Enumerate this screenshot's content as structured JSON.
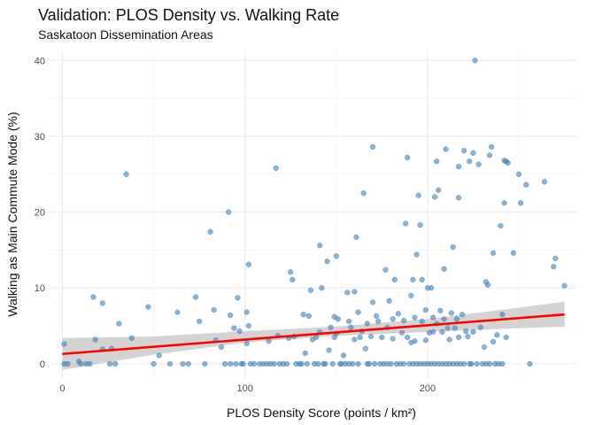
{
  "chart_data": {
    "type": "scatter",
    "title": "Validation: PLOS Density vs. Walking Rate",
    "subtitle": "Saskatoon Dissemination Areas",
    "xlabel": "PLOS Density Score (points / km²)",
    "ylabel": "Walking as Main Commute Mode (%)",
    "xlim": [
      -7,
      282
    ],
    "ylim": [
      -2,
      41.2
    ],
    "x_ticks": [
      0,
      100,
      200
    ],
    "y_ticks": [
      0,
      10,
      20,
      30,
      40
    ],
    "grid": true,
    "point_color": "#4682b4",
    "fit_color": "#ff0000",
    "band_color": "#c8c8c8",
    "fit_line": {
      "x": [
        0,
        275
      ],
      "y": [
        1.3,
        6.5
      ]
    },
    "confidence_band": {
      "x": [
        0,
        50,
        100,
        150,
        200,
        250,
        275
      ],
      "lower": [
        -0.8,
        1.2,
        2.8,
        3.7,
        4.2,
        4.7,
        4.9
      ],
      "upper": [
        3.4,
        3.6,
        4.3,
        4.9,
        5.9,
        7.4,
        8.2
      ]
    },
    "points": [
      [
        1,
        2.6
      ],
      [
        1,
        0
      ],
      [
        3,
        0
      ],
      [
        10,
        0
      ],
      [
        13,
        0
      ],
      [
        15,
        0
      ],
      [
        9,
        0.3
      ],
      [
        18,
        3.2
      ],
      [
        17,
        8.8
      ],
      [
        22,
        8.0
      ],
      [
        22,
        1.9
      ],
      [
        26,
        0
      ],
      [
        27,
        2.0
      ],
      [
        29,
        0
      ],
      [
        31,
        5.3
      ],
      [
        35,
        25.0
      ],
      [
        38,
        3.4
      ],
      [
        47,
        7.5
      ],
      [
        50,
        0
      ],
      [
        53,
        1.1
      ],
      [
        59,
        0
      ],
      [
        63,
        6.8
      ],
      [
        66,
        0
      ],
      [
        69,
        0
      ],
      [
        73,
        8.8
      ],
      [
        75,
        5.6
      ],
      [
        78,
        0
      ],
      [
        81,
        17.4
      ],
      [
        83,
        7.1
      ],
      [
        84,
        3.1
      ],
      [
        87,
        2.2
      ],
      [
        89,
        0
      ],
      [
        91,
        20.0
      ],
      [
        92,
        6.4
      ],
      [
        92,
        0
      ],
      [
        94,
        4.7
      ],
      [
        95,
        0
      ],
      [
        96,
        8.7
      ],
      [
        97,
        4.3
      ],
      [
        98,
        0
      ],
      [
        99,
        0
      ],
      [
        101,
        6.8
      ],
      [
        101,
        2.7
      ],
      [
        102,
        5.0
      ],
      [
        102,
        13.1
      ],
      [
        103,
        0
      ],
      [
        105,
        0
      ],
      [
        108,
        0
      ],
      [
        110,
        0
      ],
      [
        112,
        0
      ],
      [
        113,
        3.0
      ],
      [
        114,
        0
      ],
      [
        116,
        0
      ],
      [
        117,
        25.8
      ],
      [
        118,
        3.7
      ],
      [
        119,
        0
      ],
      [
        121,
        0
      ],
      [
        123,
        0
      ],
      [
        124,
        3.4
      ],
      [
        125,
        12.1
      ],
      [
        126,
        11.1
      ],
      [
        127,
        3.6
      ],
      [
        128,
        0
      ],
      [
        130,
        0
      ],
      [
        131,
        0
      ],
      [
        132,
        6.5
      ],
      [
        133,
        1.4
      ],
      [
        134,
        0
      ],
      [
        135,
        6.3
      ],
      [
        136,
        9.7
      ],
      [
        137,
        3.2
      ],
      [
        138,
        0
      ],
      [
        139,
        3.5
      ],
      [
        140,
        0
      ],
      [
        141,
        15.6
      ],
      [
        141,
        4.2
      ],
      [
        142,
        10.0
      ],
      [
        143,
        0
      ],
      [
        144,
        0
      ],
      [
        145,
        13.5
      ],
      [
        146,
        1.8
      ],
      [
        147,
        4.8
      ],
      [
        148,
        0
      ],
      [
        149,
        6.2
      ],
      [
        149,
        3.5
      ],
      [
        150,
        4.0
      ],
      [
        150,
        14.2
      ],
      [
        151,
        5.9
      ],
      [
        152,
        0
      ],
      [
        153,
        0
      ],
      [
        154,
        1.1
      ],
      [
        155,
        0
      ],
      [
        156,
        9.4
      ],
      [
        157,
        5.6
      ],
      [
        157,
        0
      ],
      [
        158,
        4.8
      ],
      [
        159,
        0
      ],
      [
        160,
        9.5
      ],
      [
        160,
        3.2
      ],
      [
        161,
        16.7
      ],
      [
        162,
        6.8
      ],
      [
        162,
        0
      ],
      [
        163,
        3.5
      ],
      [
        164,
        4.3
      ],
      [
        165,
        22.5
      ],
      [
        166,
        2.0
      ],
      [
        167,
        5.3
      ],
      [
        167,
        0
      ],
      [
        168,
        0
      ],
      [
        169,
        3.6
      ],
      [
        170,
        28.6
      ],
      [
        170,
        8.1
      ],
      [
        171,
        0
      ],
      [
        172,
        6.3
      ],
      [
        173,
        5.6
      ],
      [
        174,
        0
      ],
      [
        175,
        3.5
      ],
      [
        176,
        0
      ],
      [
        177,
        12.4
      ],
      [
        178,
        4.8
      ],
      [
        178,
        0
      ],
      [
        179,
        8.3
      ],
      [
        180,
        0
      ],
      [
        181,
        5.9
      ],
      [
        181,
        3.3
      ],
      [
        182,
        11.1
      ],
      [
        183,
        0
      ],
      [
        184,
        6.6
      ],
      [
        185,
        0
      ],
      [
        186,
        4.1
      ],
      [
        187,
        5.7
      ],
      [
        187,
        0
      ],
      [
        188,
        18.5
      ],
      [
        189,
        27.2
      ],
      [
        189,
        3.5
      ],
      [
        190,
        0
      ],
      [
        191,
        9.0
      ],
      [
        191,
        2.8
      ],
      [
        192,
        11.1
      ],
      [
        192,
        0
      ],
      [
        193,
        6.1
      ],
      [
        193,
        3.0
      ],
      [
        194,
        14.4
      ],
      [
        194,
        0
      ],
      [
        195,
        22.2
      ],
      [
        196,
        0
      ],
      [
        196,
        18.3
      ],
      [
        197,
        11.1
      ],
      [
        197,
        5.6
      ],
      [
        198,
        0
      ],
      [
        199,
        3.1
      ],
      [
        199,
        7.1
      ],
      [
        200,
        0
      ],
      [
        200,
        10.0
      ],
      [
        201,
        4.1
      ],
      [
        202,
        0
      ],
      [
        202,
        10.0
      ],
      [
        203,
        4.2
      ],
      [
        203,
        6.1
      ],
      [
        204,
        22.0
      ],
      [
        204,
        0
      ],
      [
        205,
        26.7
      ],
      [
        205,
        5.3
      ],
      [
        206,
        22.9
      ],
      [
        206,
        0
      ],
      [
        207,
        7.0
      ],
      [
        208,
        0
      ],
      [
        208,
        4.2
      ],
      [
        209,
        5.9
      ],
      [
        209,
        12.5
      ],
      [
        210,
        28.3
      ],
      [
        210,
        0
      ],
      [
        211,
        4.7
      ],
      [
        212,
        3.2
      ],
      [
        212,
        0
      ],
      [
        213,
        6.7
      ],
      [
        214,
        15.4
      ],
      [
        214,
        0
      ],
      [
        215,
        4.7
      ],
      [
        216,
        5.9
      ],
      [
        216,
        0
      ],
      [
        217,
        21.9
      ],
      [
        217,
        26.0
      ],
      [
        217,
        3.5
      ],
      [
        218,
        0
      ],
      [
        219,
        6.5
      ],
      [
        220,
        28.1
      ],
      [
        220,
        0
      ],
      [
        221,
        4.3
      ],
      [
        222,
        3.6
      ],
      [
        223,
        0
      ],
      [
        223,
        26.7
      ],
      [
        224,
        0
      ],
      [
        225,
        27.8
      ],
      [
        225,
        4.2
      ],
      [
        226,
        40.0
      ],
      [
        227,
        0
      ],
      [
        228,
        26.3
      ],
      [
        229,
        4.8
      ],
      [
        230,
        0
      ],
      [
        231,
        2.2
      ],
      [
        232,
        10.8
      ],
      [
        232,
        0
      ],
      [
        233,
        10.4
      ],
      [
        234,
        27.5
      ],
      [
        234,
        0
      ],
      [
        235,
        28.6
      ],
      [
        236,
        14.6
      ],
      [
        236,
        2.9
      ],
      [
        237,
        0
      ],
      [
        238,
        3.8
      ],
      [
        239,
        0
      ],
      [
        240,
        18.2
      ],
      [
        241,
        6.5
      ],
      [
        241,
        0
      ],
      [
        242,
        26.8
      ],
      [
        242,
        21.2
      ],
      [
        243,
        26.7
      ],
      [
        243,
        3.5
      ],
      [
        244,
        26.5
      ],
      [
        247,
        14.6
      ],
      [
        250,
        25.0
      ],
      [
        251,
        21.2
      ],
      [
        254,
        23.6
      ],
      [
        256,
        0
      ],
      [
        264,
        24.0
      ],
      [
        269,
        12.8
      ],
      [
        270,
        13.9
      ],
      [
        275,
        10.3
      ]
    ]
  }
}
